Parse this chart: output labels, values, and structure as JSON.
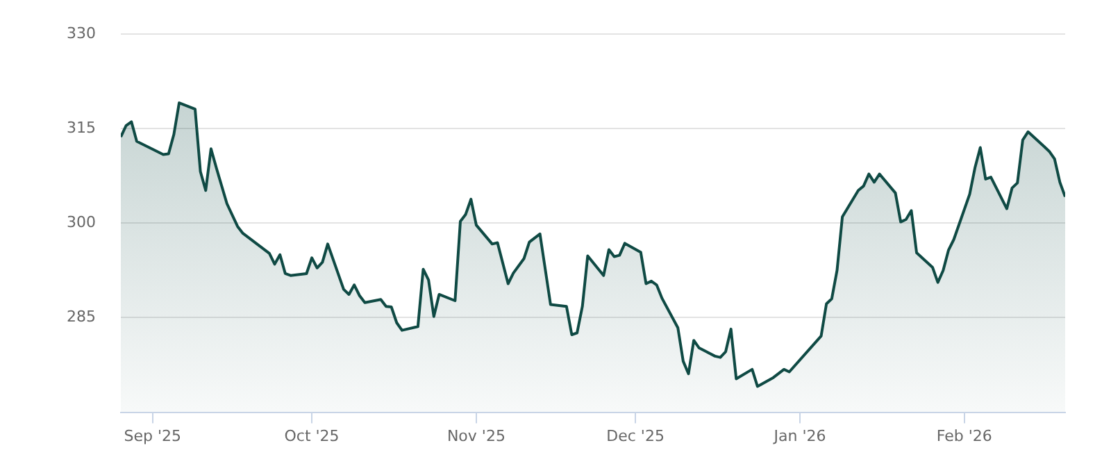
{
  "chart_data": {
    "type": "area",
    "color": "#0f4a44",
    "x": [
      "2025-08-26",
      "2025-08-27",
      "2025-08-28",
      "2025-08-29",
      "2025-09-03",
      "2025-09-04",
      "2025-09-05",
      "2025-09-06",
      "2025-09-09",
      "2025-09-10",
      "2025-09-11",
      "2025-09-12",
      "2025-09-13",
      "2025-09-15",
      "2025-09-17",
      "2025-09-18",
      "2025-09-23",
      "2025-09-24",
      "2025-09-25",
      "2025-09-26",
      "2025-09-27",
      "2025-09-30",
      "2025-10-01",
      "2025-10-02",
      "2025-10-03",
      "2025-10-04",
      "2025-10-07",
      "2025-10-08",
      "2025-10-09",
      "2025-10-10",
      "2025-10-11",
      "2025-10-14",
      "2025-10-15",
      "2025-10-16",
      "2025-10-17",
      "2025-10-18",
      "2025-10-21",
      "2025-10-22",
      "2025-10-23",
      "2025-10-24",
      "2025-10-25",
      "2025-10-28",
      "2025-10-29",
      "2025-10-30",
      "2025-10-31",
      "2025-11-01",
      "2025-11-04",
      "2025-11-05",
      "2025-11-07",
      "2025-11-08",
      "2025-11-10",
      "2025-11-11",
      "2025-11-13",
      "2025-11-15",
      "2025-11-18",
      "2025-11-19",
      "2025-11-20",
      "2025-11-21",
      "2025-11-22",
      "2025-11-25",
      "2025-11-26",
      "2025-11-27",
      "2025-11-28",
      "2025-11-29",
      "2025-12-02",
      "2025-12-03",
      "2025-12-04",
      "2025-12-05",
      "2025-12-06",
      "2025-12-09",
      "2025-12-10",
      "2025-12-11",
      "2025-12-12",
      "2025-12-13",
      "2025-12-16",
      "2025-12-17",
      "2025-12-18",
      "2025-12-19",
      "2025-12-20",
      "2025-12-23",
      "2025-12-24",
      "2025-12-27",
      "2025-12-29",
      "2025-12-30",
      "2026-01-05",
      "2026-01-06",
      "2026-01-07",
      "2026-01-08",
      "2026-01-09",
      "2026-01-12",
      "2026-01-13",
      "2026-01-14",
      "2026-01-15",
      "2026-01-16",
      "2026-01-19",
      "2026-01-20",
      "2026-01-21",
      "2026-01-22",
      "2026-01-23",
      "2026-01-26",
      "2026-01-27",
      "2026-01-28",
      "2026-01-29",
      "2026-01-30",
      "2026-02-02",
      "2026-02-03",
      "2026-02-04",
      "2026-02-05",
      "2026-02-06",
      "2026-02-09",
      "2026-02-10",
      "2026-02-11",
      "2026-02-12",
      "2026-02-13",
      "2026-02-16",
      "2026-02-17",
      "2026-02-18",
      "2026-02-19",
      "2026-02-20"
    ],
    "values": [
      313.7,
      315.5,
      316.1,
      313,
      310.9,
      311,
      314.1,
      319.1,
      318.1,
      308.2,
      305.2,
      311.8,
      308.8,
      303.1,
      299.5,
      298.4,
      295.2,
      293.5,
      295,
      292,
      291.7,
      292,
      294.5,
      292.9,
      293.8,
      296.7,
      289.5,
      288.7,
      290.2,
      288.5,
      287.4,
      287.9,
      286.8,
      286.7,
      284.2,
      283,
      283.6,
      292.7,
      291,
      285.2,
      288.7,
      287.7,
      300.3,
      301.4,
      303.8,
      299.7,
      296.7,
      296.9,
      290.4,
      292.1,
      294.4,
      297,
      298.3,
      287.1,
      286.8,
      282.3,
      282.6,
      286.8,
      294.8,
      291.7,
      295.8,
      294.7,
      294.9,
      296.8,
      295.4,
      290.4,
      290.8,
      290.2,
      288.1,
      283.4,
      278.1,
      276.1,
      281.4,
      280.2,
      278.9,
      278.7,
      279.6,
      283.2,
      275.3,
      276.8,
      274.1,
      275.5,
      276.8,
      276.4,
      282.1,
      287.2,
      288,
      292.5,
      301,
      305.2,
      305.9,
      307.8,
      306.5,
      307.8,
      304.8,
      300.2,
      300.6,
      302,
      295.3,
      293,
      290.6,
      292.5,
      295.7,
      297.4,
      304.6,
      308.8,
      312,
      307,
      307.3,
      302.3,
      305.6,
      306.4,
      313.2,
      314.5,
      312.2,
      311.4,
      310.2,
      306.5,
      304.2
    ],
    "xlim": [
      "2025-08-26",
      "2026-02-20"
    ],
    "xticks": [
      {
        "value": "2025-09-01",
        "label": "Sep '25"
      },
      {
        "value": "2025-10-01",
        "label": "Oct '25"
      },
      {
        "value": "2025-11-01",
        "label": "Nov '25"
      },
      {
        "value": "2025-12-01",
        "label": "Dec '25"
      },
      {
        "value": "2026-01-01",
        "label": "Jan '26"
      },
      {
        "value": "2026-02-01",
        "label": "Feb '26"
      }
    ],
    "ylim": [
      270,
      330
    ],
    "yticks": [
      285,
      300,
      315,
      330
    ],
    "grid": "y"
  }
}
